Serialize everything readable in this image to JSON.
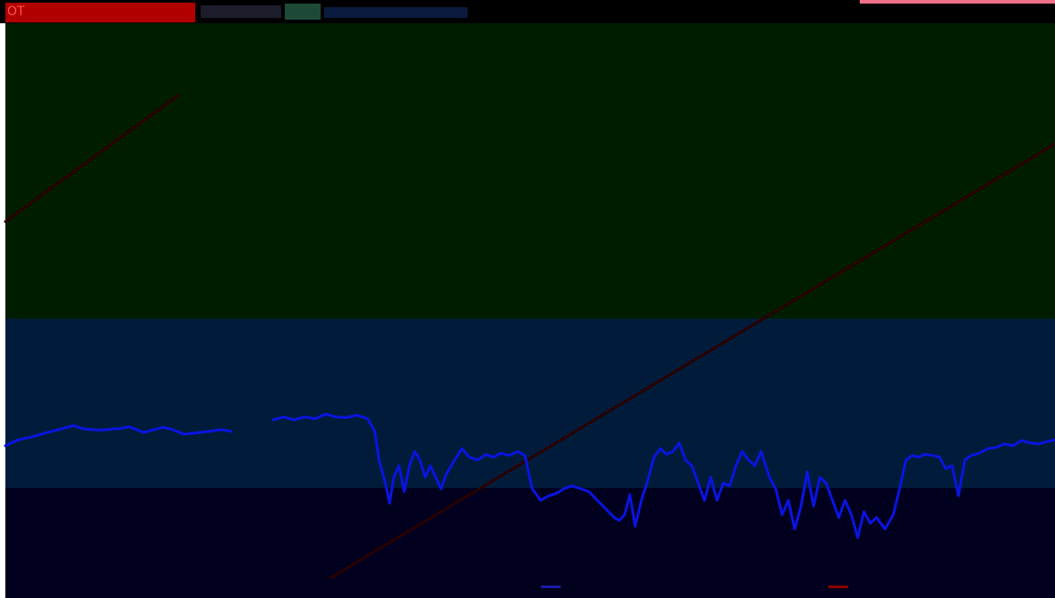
{
  "header": {
    "label": "OT"
  },
  "colors": {
    "page_background": "#ffffff",
    "header_background": "#000000",
    "header_accent_red": "#b00000",
    "header_accent_pink": "#f0708a",
    "upper_panel": "#001d00",
    "middle_panel": "#001c3a",
    "lower_panel": "#01001f",
    "trend_line": "#2a0000",
    "series_line": "#0a14e0",
    "legend_marker_1": "#1a1aa8",
    "legend_marker_2": "#8a0000"
  },
  "chart_data": {
    "type": "line",
    "title": "",
    "xlabel": "",
    "ylabel": "",
    "x_range": [
      0,
      1
    ],
    "y_range": [
      0,
      1
    ],
    "grid": false,
    "legend_position": "bottom-right",
    "legend_entries": [
      {
        "color": "#1a1aa8",
        "label": ""
      },
      {
        "color": "#8a0000",
        "label": ""
      }
    ],
    "series": [
      {
        "color": "#0a14e0",
        "points": [
          [
            0.0,
            0.735
          ],
          [
            0.012,
            0.725
          ],
          [
            0.025,
            0.72
          ],
          [
            0.04,
            0.712
          ],
          [
            0.055,
            0.705
          ],
          [
            0.065,
            0.7
          ],
          [
            0.075,
            0.706
          ],
          [
            0.09,
            0.708
          ],
          [
            0.11,
            0.705
          ],
          [
            0.118,
            0.702
          ],
          [
            0.125,
            0.707
          ],
          [
            0.132,
            0.712
          ],
          [
            0.14,
            0.708
          ],
          [
            0.15,
            0.703
          ],
          [
            0.158,
            0.706
          ],
          [
            0.17,
            0.715
          ],
          [
            0.18,
            0.713
          ],
          [
            0.195,
            0.71
          ],
          [
            0.205,
            0.707
          ],
          [
            0.215,
            0.71
          ],
          [
            0.255,
            0.69
          ],
          [
            0.265,
            0.685
          ],
          [
            0.275,
            0.69
          ],
          [
            0.285,
            0.685
          ],
          [
            0.295,
            0.688
          ],
          [
            0.305,
            0.68
          ],
          [
            0.315,
            0.685
          ],
          [
            0.325,
            0.686
          ],
          [
            0.335,
            0.682
          ],
          [
            0.345,
            0.688
          ],
          [
            0.352,
            0.71
          ],
          [
            0.356,
            0.76
          ],
          [
            0.362,
            0.8
          ],
          [
            0.366,
            0.835
          ],
          [
            0.37,
            0.79
          ],
          [
            0.375,
            0.77
          ],
          [
            0.38,
            0.815
          ],
          [
            0.385,
            0.77
          ],
          [
            0.39,
            0.745
          ],
          [
            0.395,
            0.76
          ],
          [
            0.4,
            0.79
          ],
          [
            0.405,
            0.77
          ],
          [
            0.41,
            0.79
          ],
          [
            0.415,
            0.81
          ],
          [
            0.42,
            0.785
          ],
          [
            0.428,
            0.76
          ],
          [
            0.435,
            0.74
          ],
          [
            0.442,
            0.755
          ],
          [
            0.45,
            0.76
          ],
          [
            0.458,
            0.75
          ],
          [
            0.465,
            0.755
          ],
          [
            0.472,
            0.748
          ],
          [
            0.48,
            0.752
          ],
          [
            0.488,
            0.745
          ],
          [
            0.495,
            0.752
          ],
          [
            0.502,
            0.81
          ],
          [
            0.51,
            0.83
          ],
          [
            0.518,
            0.822
          ],
          [
            0.525,
            0.818
          ],
          [
            0.532,
            0.81
          ],
          [
            0.54,
            0.805
          ],
          [
            0.548,
            0.81
          ],
          [
            0.556,
            0.815
          ],
          [
            0.564,
            0.83
          ],
          [
            0.572,
            0.845
          ],
          [
            0.58,
            0.86
          ],
          [
            0.585,
            0.865
          ],
          [
            0.59,
            0.855
          ],
          [
            0.595,
            0.82
          ],
          [
            0.6,
            0.875
          ],
          [
            0.606,
            0.83
          ],
          [
            0.612,
            0.795
          ],
          [
            0.618,
            0.755
          ],
          [
            0.624,
            0.74
          ],
          [
            0.63,
            0.75
          ],
          [
            0.636,
            0.745
          ],
          [
            0.642,
            0.73
          ],
          [
            0.648,
            0.76
          ],
          [
            0.654,
            0.77
          ],
          [
            0.66,
            0.8
          ],
          [
            0.666,
            0.83
          ],
          [
            0.672,
            0.79
          ],
          [
            0.678,
            0.83
          ],
          [
            0.684,
            0.8
          ],
          [
            0.69,
            0.805
          ],
          [
            0.696,
            0.77
          ],
          [
            0.702,
            0.745
          ],
          [
            0.708,
            0.76
          ],
          [
            0.714,
            0.77
          ],
          [
            0.72,
            0.745
          ],
          [
            0.728,
            0.79
          ],
          [
            0.734,
            0.81
          ],
          [
            0.74,
            0.855
          ],
          [
            0.746,
            0.83
          ],
          [
            0.752,
            0.88
          ],
          [
            0.758,
            0.84
          ],
          [
            0.764,
            0.78
          ],
          [
            0.77,
            0.84
          ],
          [
            0.776,
            0.79
          ],
          [
            0.782,
            0.8
          ],
          [
            0.788,
            0.83
          ],
          [
            0.794,
            0.86
          ],
          [
            0.8,
            0.83
          ],
          [
            0.806,
            0.855
          ],
          [
            0.812,
            0.895
          ],
          [
            0.818,
            0.85
          ],
          [
            0.824,
            0.87
          ],
          [
            0.83,
            0.86
          ],
          [
            0.838,
            0.88
          ],
          [
            0.846,
            0.855
          ],
          [
            0.852,
            0.81
          ],
          [
            0.858,
            0.76
          ],
          [
            0.864,
            0.752
          ],
          [
            0.87,
            0.755
          ],
          [
            0.876,
            0.75
          ],
          [
            0.884,
            0.752
          ],
          [
            0.89,
            0.755
          ],
          [
            0.896,
            0.775
          ],
          [
            0.902,
            0.77
          ],
          [
            0.908,
            0.822
          ],
          [
            0.914,
            0.76
          ],
          [
            0.92,
            0.752
          ],
          [
            0.928,
            0.748
          ],
          [
            0.936,
            0.74
          ],
          [
            0.944,
            0.738
          ],
          [
            0.952,
            0.732
          ],
          [
            0.96,
            0.735
          ],
          [
            0.968,
            0.726
          ],
          [
            0.976,
            0.73
          ],
          [
            0.984,
            0.732
          ],
          [
            0.992,
            0.728
          ],
          [
            1.0,
            0.725
          ]
        ]
      }
    ],
    "trend_lines": [
      {
        "color": "#2a0000",
        "points": [
          [
            0.0,
            0.345
          ],
          [
            0.165,
            0.125
          ]
        ]
      },
      {
        "color": "#2a0000",
        "points": [
          [
            0.31,
            0.965
          ],
          [
            1.0,
            0.21
          ]
        ]
      }
    ]
  }
}
